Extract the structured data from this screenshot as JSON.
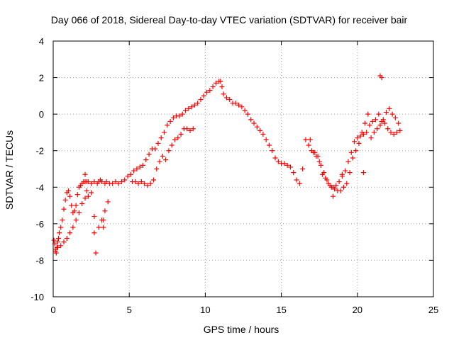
{
  "chart_data": {
    "type": "scatter",
    "title": "Day 066 of 2018, Sidereal Day-to-day VTEC variation (SDTVAR) for receiver bair",
    "xlabel": "GPS time / hours",
    "ylabel": "SDTVAR / TECUs",
    "xlim": [
      0,
      25
    ],
    "ylim": [
      -10,
      4
    ],
    "xticks": [
      0,
      5,
      10,
      15,
      20,
      25
    ],
    "yticks": [
      -10,
      -8,
      -6,
      -4,
      -2,
      0,
      2,
      4
    ],
    "grid": true,
    "marker": "+",
    "color": "#ff0000",
    "series": [
      {
        "name": "SDTVAR",
        "x": [
          0.05,
          0.1,
          0.15,
          0.2,
          0.25,
          0.3,
          0.35,
          0.4,
          0.5,
          0.6,
          0.7,
          0.8,
          0.9,
          1.0,
          1.1,
          1.2,
          1.3,
          1.4,
          1.5,
          1.6,
          1.7,
          1.8,
          1.9,
          2.0,
          2.1,
          2.2,
          2.3,
          2.5,
          2.7,
          2.9,
          3.0,
          3.1,
          3.2,
          3.4,
          3.5,
          3.7,
          3.9,
          4.1,
          4.3,
          4.5,
          4.7,
          4.9,
          5.1,
          5.3,
          5.5,
          5.7,
          5.9,
          6.1,
          6.3,
          6.5,
          6.7,
          6.9,
          7.1,
          7.3,
          7.5,
          7.7,
          7.9,
          8.1,
          8.3,
          8.5,
          8.7,
          8.9,
          9.1,
          9.3,
          9.5,
          9.7,
          9.9,
          10.1,
          10.3,
          10.5,
          10.7,
          10.9,
          11.0,
          11.1,
          11.2,
          11.4,
          11.6,
          11.8,
          12.0,
          12.2,
          12.4,
          12.6,
          12.8,
          13.0,
          13.2,
          13.4,
          13.6,
          13.8,
          14.0,
          14.2,
          14.4,
          14.6,
          14.8,
          15.0,
          15.2,
          15.4,
          15.6,
          15.8,
          16.0,
          16.2,
          16.4,
          16.6,
          16.8,
          17.0,
          17.2,
          17.4,
          17.6,
          17.8,
          18.0,
          18.2,
          18.4,
          18.6,
          18.8,
          19.0,
          19.2,
          19.4,
          19.6,
          19.8,
          20.0,
          20.2,
          20.4,
          20.6,
          20.8,
          21.0,
          21.2,
          21.4,
          21.6,
          21.8,
          22.0,
          22.2,
          22.4,
          22.6,
          22.8,
          0.15,
          0.3,
          0.5,
          0.7,
          0.9,
          1.1,
          1.3,
          1.5,
          1.7,
          1.9,
          2.1,
          2.3,
          2.5,
          2.7,
          3.0,
          3.2,
          3.4,
          3.6,
          5.2,
          5.4,
          5.6,
          5.8,
          6.0,
          6.2,
          6.4,
          6.6,
          6.8,
          7.0,
          7.2,
          7.4,
          7.6,
          7.8,
          8.0,
          8.2,
          8.4,
          8.6,
          8.8,
          9.0,
          9.2,
          16.9,
          17.1,
          17.3,
          17.5,
          17.7,
          17.9,
          18.1,
          18.3,
          18.5,
          18.7,
          18.9,
          19.1,
          19.3,
          19.5,
          19.7,
          19.9,
          20.1,
          20.3,
          20.5,
          20.7,
          20.9,
          21.1,
          21.3,
          21.5,
          21.7,
          21.9,
          22.1,
          22.3,
          22.5,
          22.7,
          2.1,
          2.2,
          2.8,
          2.7,
          3.3,
          3.3,
          18.4,
          19.0,
          20.4,
          21.5,
          21.6
        ],
        "y": [
          -6.9,
          -7.1,
          -7.4,
          -7.6,
          -7.3,
          -7.0,
          -6.8,
          -6.5,
          -6.2,
          -5.8,
          -5.2,
          -4.7,
          -4.3,
          -4.2,
          -4.5,
          -5.0,
          -5.4,
          -5.3,
          -5.0,
          -4.4,
          -4.0,
          -3.9,
          -3.8,
          -3.7,
          -3.7,
          -3.7,
          -3.7,
          -3.8,
          -3.7,
          -3.8,
          -3.7,
          -3.6,
          -3.7,
          -3.8,
          -3.7,
          -3.8,
          -3.8,
          -3.7,
          -3.8,
          -3.7,
          -3.6,
          -3.4,
          -3.3,
          -3.1,
          -3.0,
          -2.9,
          -2.8,
          -2.5,
          -2.2,
          -1.9,
          -1.9,
          -1.6,
          -1.3,
          -1.0,
          -0.6,
          -0.4,
          -0.2,
          -0.1,
          -0.1,
          0.0,
          0.2,
          0.3,
          0.4,
          0.5,
          0.6,
          0.8,
          1.0,
          1.2,
          1.3,
          1.5,
          1.7,
          1.8,
          1.8,
          1.5,
          1.1,
          0.9,
          0.8,
          0.6,
          0.6,
          0.5,
          0.4,
          0.2,
          0.0,
          -0.3,
          -0.5,
          -0.7,
          -0.9,
          -1.1,
          -1.4,
          -1.7,
          -2.0,
          -2.4,
          -2.6,
          -2.7,
          -2.7,
          -2.8,
          -2.9,
          -3.2,
          -3.6,
          -3.8,
          -3.0,
          -1.4,
          -1.7,
          -2.0,
          -2.1,
          -2.3,
          -2.8,
          -3.2,
          -3.6,
          -3.9,
          -4.0,
          -3.9,
          -3.7,
          -3.3,
          -3.1,
          -2.6,
          -2.1,
          -1.5,
          -1.3,
          -1.2,
          -1.1,
          -1.0,
          -0.6,
          -0.4,
          -0.3,
          0.0,
          -0.4,
          -0.5,
          -0.8,
          -1.0,
          -1.1,
          -1.0,
          -0.9,
          -7.5,
          -7.3,
          -7.2,
          -7.0,
          -6.8,
          -6.5,
          -6.2,
          -5.8,
          -5.4,
          -4.9,
          -4.6,
          -4.5,
          -4.3,
          -5.6,
          -6.2,
          -5.8,
          -5.3,
          -4.8,
          -3.7,
          -3.7,
          -3.8,
          -3.7,
          -3.8,
          -3.9,
          -3.8,
          -3.6,
          -3.0,
          -2.6,
          -2.3,
          -2.5,
          -2.0,
          -1.7,
          -1.4,
          -1.3,
          -1.1,
          -0.8,
          -0.8,
          -0.9,
          -0.8,
          -1.4,
          -2.1,
          -2.3,
          -2.6,
          -3.3,
          -3.5,
          -3.8,
          -4.0,
          -4.1,
          -4.2,
          -4.2,
          -4.0,
          -3.8,
          -3.2,
          -2.4,
          -2.0,
          -1.6,
          -1.0,
          -0.5,
          0.0,
          -1.3,
          -1.0,
          -0.8,
          -0.6,
          -0.3,
          0.1,
          0.3,
          0.0,
          -0.2,
          -0.5,
          -3.3,
          -4.2,
          -7.6,
          -6.5,
          -6.2,
          -5.8,
          -4.5,
          -3.4,
          -3.2,
          2.1,
          2.0
        ]
      }
    ]
  }
}
